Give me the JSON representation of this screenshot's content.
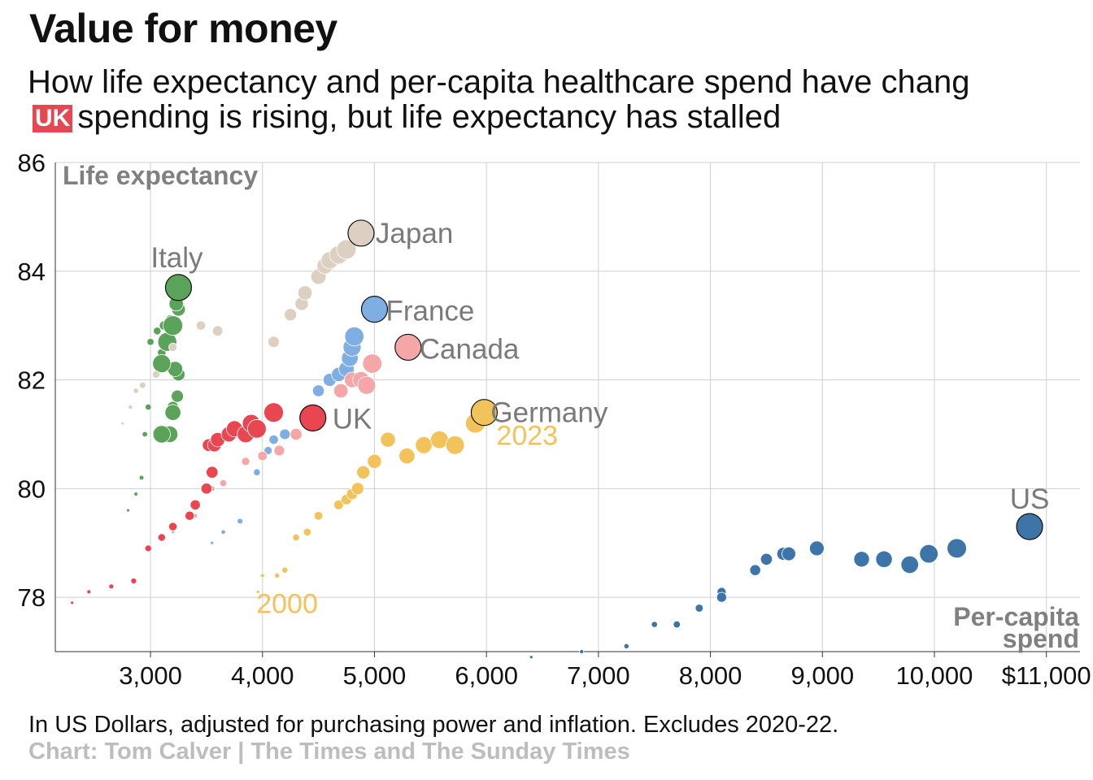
{
  "header": {
    "title": "Value for money",
    "subtitle_line1": "How life expectancy and per-capita healthcare spend have chang",
    "subtitle_badge": "UK",
    "subtitle_line2": "spending is rising, but life expectancy has stalled"
  },
  "footer": {
    "note": "In US Dollars, adjusted for purchasing power and inflation. Excludes 2020-22.",
    "credit": "Chart: Tom Calver | The Times and The Sunday Times"
  },
  "chart_data": {
    "type": "scatter",
    "ylabel": "Life expectancy",
    "xlabel": "Per-capita spend",
    "xlim": [
      2150,
      11300
    ],
    "ylim": [
      77,
      86
    ],
    "x_ticks": [
      3000,
      4000,
      5000,
      6000,
      7000,
      8000,
      9000,
      10000,
      11000
    ],
    "x_tick_labels": [
      "3,000",
      "4,000",
      "5,000",
      "6,000",
      "7,000",
      "8,000",
      "9,000",
      "10,000",
      "$11,000"
    ],
    "y_ticks": [
      78,
      80,
      82,
      84,
      86
    ],
    "y_tick_labels": [
      "78",
      "80",
      "82",
      "84",
      "86"
    ],
    "grid": true,
    "annotations": {
      "start_year": "2000",
      "end_year": "2023"
    },
    "series": [
      {
        "name": "Italy",
        "color": "#5ba35b",
        "x": [
          2800,
          2870,
          2920,
          2950,
          2980,
          3000,
          3060,
          3100,
          3120,
          3170,
          3180,
          3200,
          3240,
          3250,
          3250,
          3230,
          3220,
          3200,
          3170,
          3100,
          3100,
          3150,
          3200,
          3250
        ],
        "y": [
          79.6,
          79.9,
          80.2,
          81.0,
          81.5,
          82.7,
          82.9,
          82.5,
          83.0,
          82.7,
          83.1,
          81.5,
          81.7,
          82.1,
          83.3,
          83.4,
          82.2,
          81.4,
          81.0,
          81.0,
          82.3,
          82.7,
          83.0,
          83.7
        ]
      },
      {
        "name": "Japan",
        "color": "#dcd0c2",
        "x": [
          2750,
          2820,
          2870,
          2930,
          3050,
          3200,
          3450,
          3600,
          4100,
          4250,
          4350,
          4380,
          4500,
          4560,
          4600,
          4680,
          4750,
          4880
        ],
        "y": [
          81.2,
          81.5,
          81.8,
          81.9,
          82.1,
          82.6,
          83.0,
          82.9,
          82.7,
          83.2,
          83.4,
          83.6,
          83.9,
          84.1,
          84.2,
          84.3,
          84.4,
          84.7
        ]
      },
      {
        "name": "France",
        "color": "#7eaee2",
        "x": [
          3550,
          3650,
          3800,
          3950,
          4050,
          4100,
          4200,
          4500,
          4600,
          4680,
          4750,
          4780,
          4800,
          4820,
          5000
        ],
        "y": [
          79.0,
          79.2,
          79.4,
          80.3,
          80.7,
          80.9,
          81.0,
          81.8,
          82.0,
          82.1,
          82.2,
          82.4,
          82.6,
          82.8,
          83.3
        ]
      },
      {
        "name": "Canada",
        "color": "#f5a6a6",
        "x": [
          3200,
          3400,
          3550,
          3650,
          3850,
          4000,
          4150,
          4300,
          4450,
          4700,
          4800,
          4880,
          4930,
          4980,
          5300
        ],
        "y": [
          79.2,
          79.5,
          80.0,
          80.1,
          80.5,
          80.6,
          80.7,
          81.0,
          81.4,
          81.8,
          82.0,
          82.0,
          81.9,
          82.3,
          82.6
        ]
      },
      {
        "name": "UK",
        "color": "#e84651",
        "x": [
          2300,
          2450,
          2650,
          2850,
          2980,
          3100,
          3200,
          3350,
          3400,
          3500,
          3550,
          3520,
          3570,
          3600,
          3700,
          3750,
          3850,
          3900,
          3950,
          4100,
          4450
        ],
        "y": [
          77.9,
          78.1,
          78.2,
          78.3,
          78.9,
          79.1,
          79.3,
          79.5,
          79.7,
          80.0,
          80.3,
          80.8,
          80.8,
          80.9,
          81.0,
          81.1,
          81.0,
          81.2,
          81.1,
          81.4,
          81.3
        ]
      },
      {
        "name": "Germany",
        "color": "#f2c35b",
        "x": [
          3960,
          4000,
          4130,
          4200,
          4300,
          4400,
          4500,
          4680,
          4750,
          4800,
          4850,
          4900,
          5000,
          5120,
          5290,
          5440,
          5580,
          5720,
          5900,
          5980
        ],
        "y": [
          78.1,
          78.4,
          78.4,
          78.5,
          79.1,
          79.2,
          79.5,
          79.7,
          79.8,
          79.9,
          80.0,
          80.3,
          80.5,
          80.9,
          80.6,
          80.8,
          80.9,
          80.8,
          81.2,
          81.4
        ]
      },
      {
        "name": "US",
        "color": "#3d75a8",
        "x": [
          6400,
          6850,
          7250,
          7500,
          7700,
          7900,
          8100,
          8100,
          8400,
          8500,
          8650,
          8700,
          8950,
          9350,
          9550,
          9780,
          9950,
          10200,
          10850
        ],
        "y": [
          76.9,
          77.0,
          77.1,
          77.5,
          77.5,
          77.8,
          78.1,
          78.0,
          78.5,
          78.7,
          78.8,
          78.8,
          78.9,
          78.7,
          78.7,
          78.6,
          78.8,
          78.9,
          79.3
        ]
      }
    ]
  }
}
